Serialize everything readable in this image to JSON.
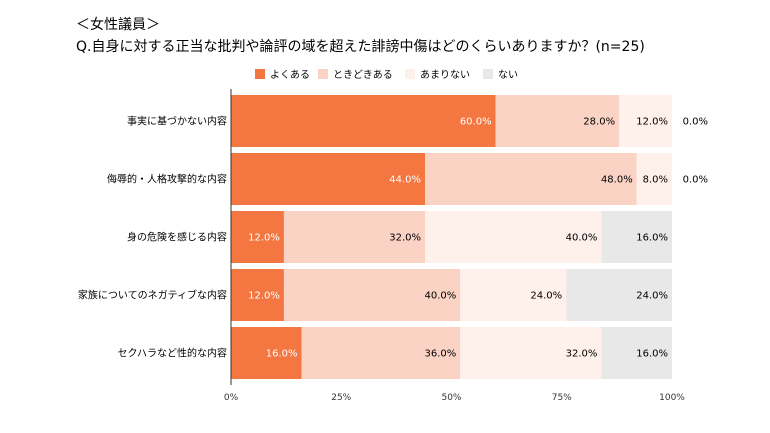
{
  "chart_data": {
    "type": "bar",
    "orientation": "horizontal-stacked-100",
    "title": "＜女性議員＞",
    "subtitle": "Q.自身に対する正当な批判や論評の域を超えた誹謗中傷はどのくらいありますか？(n=25)",
    "categories": [
      "事実に基づかない内容",
      "侮辱的・人格攻撃的な内容",
      "身の危険を感じる内容",
      "家族についてのネガティブな内容",
      "セクハラなど性的な内容"
    ],
    "series": [
      {
        "name": "よくある",
        "color": "#f47641",
        "values": [
          60.0,
          44.0,
          12.0,
          12.0,
          16.0
        ],
        "label_color": "#ffffff"
      },
      {
        "name": "ときどきある",
        "color": "#fad3c5",
        "values": [
          28.0,
          48.0,
          32.0,
          40.0,
          36.0
        ],
        "label_color": "#000000"
      },
      {
        "name": "あまりない",
        "color": "#fef0eb",
        "values": [
          12.0,
          8.0,
          40.0,
          24.0,
          32.0
        ],
        "label_color": "#000000"
      },
      {
        "name": "ない",
        "color": "#e8e8e8",
        "values": [
          0.0,
          0.0,
          16.0,
          24.0,
          16.0
        ],
        "label_color": "#000000"
      }
    ],
    "xlim": [
      0,
      100
    ],
    "x_ticks": [
      "0%",
      "25%",
      "50%",
      "75%",
      "100%"
    ],
    "legend_position": "top",
    "grid": false
  }
}
